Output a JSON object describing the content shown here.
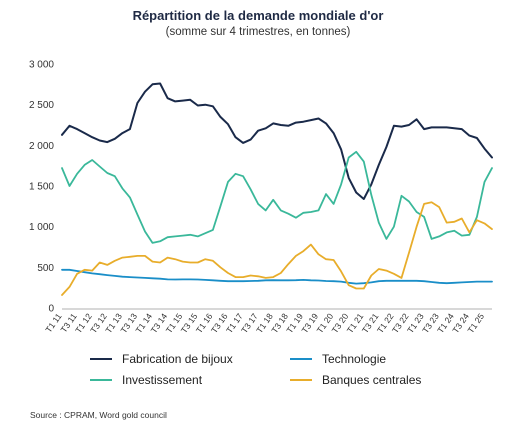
{
  "title": "Répartition de la demande mondiale d'or",
  "subtitle": "(somme sur 4 trimestres, en tonnes)",
  "source": "Source : CPRAM, Word gold council",
  "chart_data": {
    "type": "line",
    "ylim": [
      0,
      3000
    ],
    "yticks": [
      0,
      500,
      1000,
      1500,
      2000,
      2500,
      3000
    ],
    "ytick_labels": [
      "0",
      "500",
      "1 000",
      "1 500",
      "2 000",
      "2 500",
      "3 000"
    ],
    "grid": false,
    "legend": "bottom",
    "x_labels": [
      "T1 11",
      "T3 11",
      "T1 12",
      "T3 12",
      "T1 13",
      "T3 13",
      "T1 14",
      "T3 14",
      "T1 15",
      "T3 15",
      "T1 16",
      "T3 16",
      "T1 17",
      "T3 17",
      "T1 18",
      "T3 18",
      "T1 19",
      "T3 19",
      "T1 20",
      "T3 20",
      "T1 21",
      "T3 21",
      "T1 22",
      "T3 22",
      "T1 23",
      "T3 23",
      "T1 24",
      "T3 24",
      "T1 25"
    ],
    "n_points": 58,
    "series": [
      {
        "name": "Fabrication de bijoux",
        "color": "#1a2a4a",
        "values": [
          2130,
          2240,
          2200,
          2150,
          2100,
          2060,
          2040,
          2080,
          2150,
          2200,
          2520,
          2660,
          2750,
          2760,
          2580,
          2540,
          2550,
          2560,
          2490,
          2500,
          2480,
          2350,
          2260,
          2100,
          2030,
          2070,
          2180,
          2210,
          2270,
          2250,
          2240,
          2280,
          2290,
          2310,
          2330,
          2270,
          2150,
          1950,
          1600,
          1420,
          1340,
          1520,
          1760,
          1980,
          2240,
          2230,
          2250,
          2320,
          2200,
          2220,
          2220,
          2220,
          2210,
          2200,
          2120,
          2090,
          1960,
          1850
        ]
      },
      {
        "name": "Technologie",
        "color": "#1a8ec8",
        "values": [
          470,
          470,
          455,
          440,
          425,
          415,
          405,
          395,
          385,
          380,
          375,
          370,
          365,
          360,
          352,
          350,
          352,
          352,
          350,
          345,
          340,
          335,
          330,
          330,
          330,
          332,
          335,
          340,
          342,
          340,
          340,
          342,
          345,
          340,
          338,
          332,
          330,
          325,
          310,
          300,
          305,
          315,
          330,
          335,
          335,
          335,
          335,
          335,
          330,
          320,
          310,
          305,
          310,
          315,
          320,
          325,
          325,
          325
        ]
      },
      {
        "name": "Investissement",
        "color": "#3ab89a",
        "values": [
          1720,
          1500,
          1650,
          1760,
          1820,
          1740,
          1660,
          1620,
          1470,
          1360,
          1150,
          940,
          800,
          820,
          870,
          880,
          890,
          900,
          880,
          920,
          960,
          1250,
          1550,
          1650,
          1620,
          1460,
          1280,
          1200,
          1330,
          1200,
          1160,
          1110,
          1170,
          1180,
          1200,
          1400,
          1280,
          1520,
          1850,
          1920,
          1800,
          1390,
          1050,
          850,
          1000,
          1380,
          1310,
          1180,
          1120,
          850,
          880,
          930,
          950,
          890,
          900,
          1120,
          1550,
          1720
        ]
      },
      {
        "name": "Banques centrales",
        "color": "#e8ad2b",
        "values": [
          160,
          260,
          420,
          470,
          460,
          560,
          530,
          580,
          620,
          630,
          640,
          640,
          570,
          560,
          620,
          600,
          570,
          560,
          560,
          600,
          580,
          500,
          430,
          380,
          380,
          400,
          390,
          370,
          380,
          430,
          540,
          640,
          700,
          780,
          660,
          600,
          590,
          450,
          280,
          240,
          240,
          400,
          480,
          460,
          420,
          370,
          680,
          1000,
          1280,
          1300,
          1240,
          1050,
          1060,
          1100,
          930,
          1080,
          1040,
          970
        ]
      }
    ]
  }
}
